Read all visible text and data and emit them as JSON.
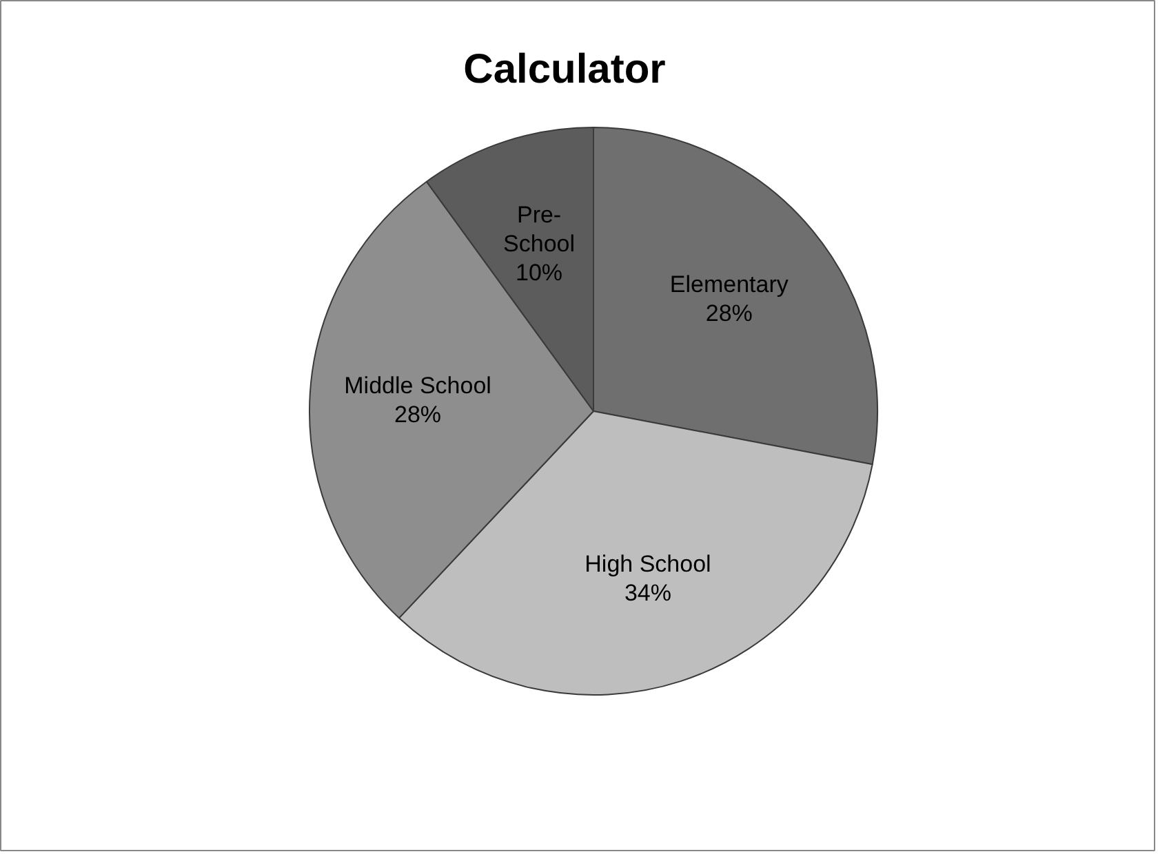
{
  "chart_data": {
    "type": "pie",
    "title": "Calculator",
    "categories": [
      "Elementary",
      "High School",
      "Middle School",
      "Pre-School"
    ],
    "values": [
      28,
      34,
      28,
      10
    ],
    "colors": [
      "#6f6f6f",
      "#bebebe",
      "#8e8e8e",
      "#5c5c5c"
    ],
    "value_labels": [
      "28%",
      "34%",
      "28%",
      "10%"
    ],
    "legend": false
  }
}
